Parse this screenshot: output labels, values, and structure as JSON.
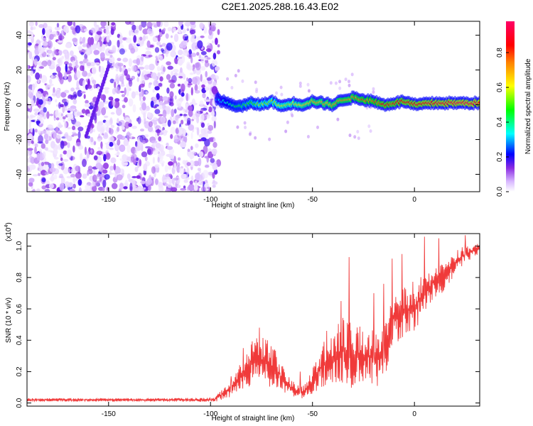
{
  "title": "C2E1.2025.288.16.43.E02",
  "chart_data": [
    {
      "type": "heatmap",
      "name": "spectrogram",
      "xlabel": "Height of straight line (km)",
      "ylabel": "Frequency (Hz)",
      "xlim": [
        -190,
        32
      ],
      "ylim": [
        -50,
        48
      ],
      "xticks": [
        "-150",
        "-100",
        "-50",
        "0"
      ],
      "yticks": [
        "40",
        "20",
        "0",
        "-20",
        "-40"
      ],
      "xtick_values": [
        -150,
        -100,
        -50,
        0
      ],
      "ytick_values": [
        40,
        20,
        0,
        -20,
        -40
      ],
      "colorbar": {
        "label": "Normalized spectral amplitude",
        "range": [
          0,
          0.98
        ],
        "ticks": [
          "0.0",
          "0.2",
          "0.4",
          "0.6",
          "0.8"
        ],
        "tick_values": [
          0.0,
          0.2,
          0.4,
          0.6,
          0.8
        ],
        "colors": [
          "#ffffff",
          "#9b30ff",
          "#0000ff",
          "#00ffff",
          "#00ff00",
          "#ffff00",
          "#ff8000",
          "#ff0000",
          "#ff0066"
        ]
      },
      "ridge": {
        "x": [
          -96,
          -90,
          -85,
          -80,
          -75,
          -70,
          -65,
          -60,
          -55,
          -50,
          -45,
          -40,
          -35,
          -30,
          -25,
          -20,
          -15,
          -10,
          -5,
          0,
          10,
          20,
          32
        ],
        "y": [
          3,
          0,
          -1,
          1,
          0,
          2,
          -1,
          1,
          0,
          2,
          1,
          0,
          3,
          4,
          3,
          2,
          0,
          1,
          2,
          0,
          1,
          1,
          1
        ],
        "amp": [
          0.3,
          0.4,
          0.45,
          0.5,
          0.55,
          0.55,
          0.6,
          0.6,
          0.65,
          0.7,
          0.7,
          0.72,
          0.75,
          0.75,
          0.78,
          0.8,
          0.85,
          0.85,
          0.88,
          0.9,
          0.92,
          0.94,
          0.95
        ]
      }
    },
    {
      "type": "line",
      "name": "snr",
      "xlabel": "Height of straight line (km)",
      "ylabel": "SNR (10 * v/v)",
      "yscale_label": "(x10",
      "yscale_exp": "4",
      "yscale_close": ")",
      "xlim": [
        -190,
        32
      ],
      "ylim": [
        -0.02,
        1.08
      ],
      "xticks": [
        "-150",
        "-100",
        "-50",
        "0"
      ],
      "yticks": [
        "0.0",
        "0.2",
        "0.4",
        "0.6",
        "0.8",
        "1.0"
      ],
      "xtick_values": [
        -150,
        -100,
        -50,
        0
      ],
      "ytick_values": [
        0.0,
        0.2,
        0.4,
        0.6,
        0.8,
        1.0
      ],
      "color": "#f03a3a",
      "envelope": {
        "x": [
          -190,
          -120,
          -98,
          -93,
          -88,
          -83,
          -78,
          -73,
          -68,
          -63,
          -58,
          -54,
          -50,
          -46,
          -42,
          -38,
          -34,
          -30,
          -26,
          -22,
          -18,
          -14,
          -10,
          -5,
          0,
          5,
          10,
          15,
          20,
          25,
          32
        ],
        "mid": [
          0.02,
          0.02,
          0.02,
          0.07,
          0.12,
          0.2,
          0.28,
          0.26,
          0.22,
          0.12,
          0.08,
          0.07,
          0.14,
          0.22,
          0.28,
          0.3,
          0.34,
          0.3,
          0.3,
          0.3,
          0.28,
          0.35,
          0.55,
          0.58,
          0.62,
          0.7,
          0.78,
          0.82,
          0.9,
          0.95,
          0.98
        ],
        "amp": [
          0.012,
          0.012,
          0.015,
          0.05,
          0.09,
          0.13,
          0.18,
          0.17,
          0.15,
          0.07,
          0.05,
          0.05,
          0.1,
          0.16,
          0.2,
          0.22,
          0.26,
          0.23,
          0.22,
          0.2,
          0.2,
          0.18,
          0.2,
          0.18,
          0.18,
          0.14,
          0.13,
          0.12,
          0.08,
          0.06,
          0.04
        ]
      },
      "peaks": [
        {
          "x": -90,
          "y": 0.17
        },
        {
          "x": -84,
          "y": 0.35
        },
        {
          "x": -76,
          "y": 0.48
        },
        {
          "x": -72,
          "y": 0.4
        },
        {
          "x": -56,
          "y": 0.2
        },
        {
          "x": -43,
          "y": 0.46
        },
        {
          "x": -36,
          "y": 0.65
        },
        {
          "x": -32,
          "y": 0.93
        },
        {
          "x": -20,
          "y": 0.7
        },
        {
          "x": -15,
          "y": 0.76
        },
        {
          "x": -11,
          "y": 0.92
        },
        {
          "x": -6,
          "y": 0.95
        },
        {
          "x": 5,
          "y": 1.06
        },
        {
          "x": 12,
          "y": 1.05
        },
        {
          "x": 25,
          "y": 1.07
        }
      ]
    }
  ]
}
